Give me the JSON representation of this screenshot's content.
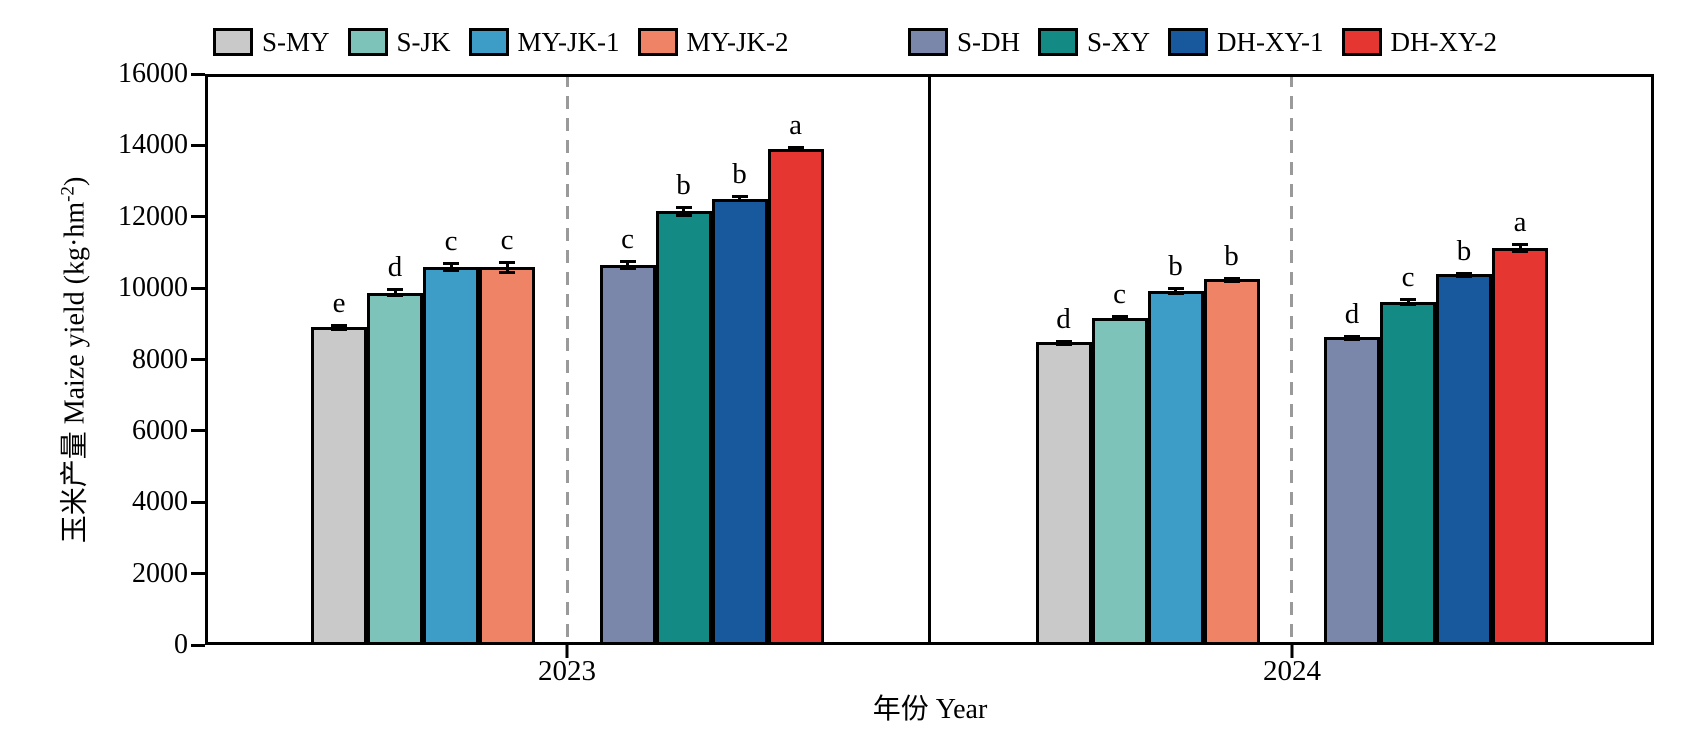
{
  "figure": {
    "background": "#ffffff",
    "frame_color": "#000000",
    "dashed_line_color": "#9a9a9a"
  },
  "axes": {
    "y": {
      "label_prefix": "玉米产量 Maize yield (kg·hm",
      "label_sup": "-2",
      "label_suffix": ")",
      "min": 0,
      "max": 16000,
      "tick_step": 2000,
      "ticks": [
        0,
        2000,
        4000,
        6000,
        8000,
        10000,
        12000,
        14000,
        16000
      ]
    },
    "x": {
      "title": "年份 Year",
      "categories": [
        "2023",
        "2024"
      ]
    }
  },
  "chart_data": {
    "type": "bar",
    "title": "",
    "xlabel": "年份 Year",
    "ylabel": "玉米产量 Maize yield (kg·hm-2)",
    "ylim": [
      0,
      16000
    ],
    "ytick_step": 2000,
    "grid": false,
    "legend_position": "top",
    "categories": [
      "2023",
      "2024"
    ],
    "cluster_note": "Within each year panel: left cluster = first four series, right cluster = last four series, separated by a gray dashed line at the panel center; solid black line separates the two year panels.",
    "series": [
      {
        "name": "S-MY",
        "color": "#c9c9c9",
        "values": [
          8900,
          8500
        ],
        "errors": [
          90,
          50
        ],
        "sig_letters": [
          "e",
          "d"
        ],
        "cluster": 0
      },
      {
        "name": "S-JK",
        "color": "#7dc3ba",
        "values": [
          9870,
          9170
        ],
        "errors": [
          130,
          90
        ],
        "sig_letters": [
          "d",
          "c"
        ],
        "cluster": 0
      },
      {
        "name": "MY-JK-1",
        "color": "#3d9dc6",
        "values": [
          10600,
          9920
        ],
        "errors": [
          140,
          120
        ],
        "sig_letters": [
          "c",
          "b"
        ],
        "cluster": 0
      },
      {
        "name": "MY-JK-2",
        "color": "#ee8465",
        "values": [
          10580,
          10250
        ],
        "errors": [
          190,
          50
        ],
        "sig_letters": [
          "c",
          "b"
        ],
        "cluster": 0
      },
      {
        "name": "S-DH",
        "color": "#7a87ab",
        "values": [
          10650,
          8620
        ],
        "errors": [
          140,
          60
        ],
        "sig_letters": [
          "c",
          "d"
        ],
        "cluster": 1
      },
      {
        "name": "S-XY",
        "color": "#138a84",
        "values": [
          12150,
          9600
        ],
        "errors": [
          150,
          110
        ],
        "sig_letters": [
          "b",
          "c"
        ],
        "cluster": 1
      },
      {
        "name": "DH-XY-1",
        "color": "#17599c",
        "values": [
          12500,
          10400
        ],
        "errors": [
          100,
          60
        ],
        "sig_letters": [
          "b",
          "b"
        ],
        "cluster": 1
      },
      {
        "name": "DH-XY-2",
        "color": "#e63632",
        "values": [
          13900,
          11120
        ],
        "errors": [
          90,
          140
        ],
        "sig_letters": [
          "a",
          "a"
        ],
        "cluster": 1
      }
    ]
  },
  "legend": {
    "groups": [
      {
        "items": [
          "S-MY",
          "S-JK",
          "MY-JK-1",
          "MY-JK-2"
        ]
      },
      {
        "items": [
          "S-DH",
          "S-XY",
          "DH-XY-1",
          "DH-XY-2"
        ]
      }
    ]
  }
}
